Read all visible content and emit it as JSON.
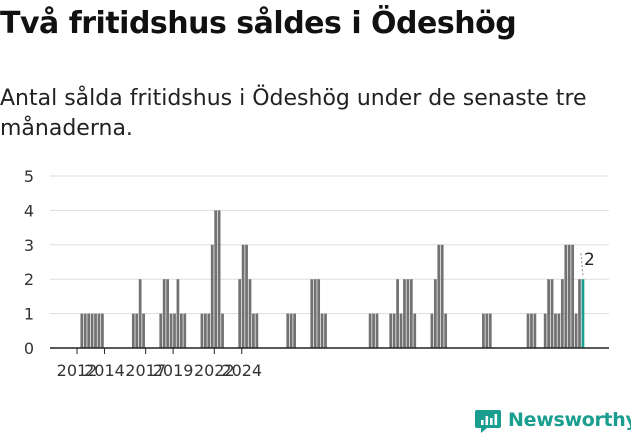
{
  "title": "Två fritidshus såldes i Ödeshög",
  "subtitle": "Antal sålda fritidshus i Ödeshög under de senaste tre månaderna.",
  "brand": {
    "name": "Newsworthy",
    "icon": "newsworthy-logo-icon",
    "color": "#1a9e8f"
  },
  "colors": {
    "bar": "#727272",
    "highlight": "#1a9e8f",
    "grid": "#dddddd",
    "axis": "#222222"
  },
  "chart_data": {
    "type": "bar",
    "title": "Två fritidshus såldes i Ödeshög",
    "subtitle": "Antal sålda fritidshus i Ödeshög under de senaste tre månaderna.",
    "xlabel": "",
    "ylabel": "",
    "ylim": [
      0,
      5
    ],
    "yticks": [
      "0",
      "1",
      "2",
      "3",
      "4",
      "5"
    ],
    "xticks": [
      "2012",
      "2014",
      "2017",
      "2019",
      "2022",
      "2024"
    ],
    "grid": "horizontal",
    "bar_interval": "quarter",
    "start_quarter": "2012 Q1",
    "values": [
      0,
      1,
      1,
      1,
      1,
      1,
      1,
      1,
      0,
      0,
      0,
      0,
      0,
      0,
      0,
      0,
      1,
      1,
      2,
      1,
      0,
      0,
      0,
      0,
      1,
      2,
      2,
      1,
      1,
      2,
      1,
      1,
      0,
      0,
      0,
      0,
      1,
      1,
      1,
      3,
      4,
      4,
      1,
      0,
      0,
      0,
      0,
      2,
      3,
      3,
      2,
      1,
      1,
      0,
      0,
      0,
      0,
      0,
      0,
      0,
      0,
      1,
      1,
      1,
      0,
      0,
      0,
      0,
      2,
      2,
      2,
      1,
      1,
      0,
      0,
      0,
      0,
      0,
      0,
      0,
      0,
      0,
      0,
      0,
      0,
      1,
      1,
      1,
      0,
      0,
      0,
      1,
      1,
      2,
      1,
      2,
      2,
      2,
      1,
      0,
      0,
      0,
      0,
      1,
      2,
      3,
      3,
      1,
      0,
      0,
      0,
      0,
      0,
      0,
      0,
      0,
      0,
      0,
      1,
      1,
      1,
      0,
      0,
      0,
      0,
      0,
      0,
      0,
      0,
      0,
      0,
      1,
      1,
      1,
      0,
      0,
      1,
      2,
      2,
      1,
      1,
      2,
      3,
      3,
      3,
      1,
      2,
      2
    ],
    "highlight_last": true,
    "annotation": "2"
  }
}
